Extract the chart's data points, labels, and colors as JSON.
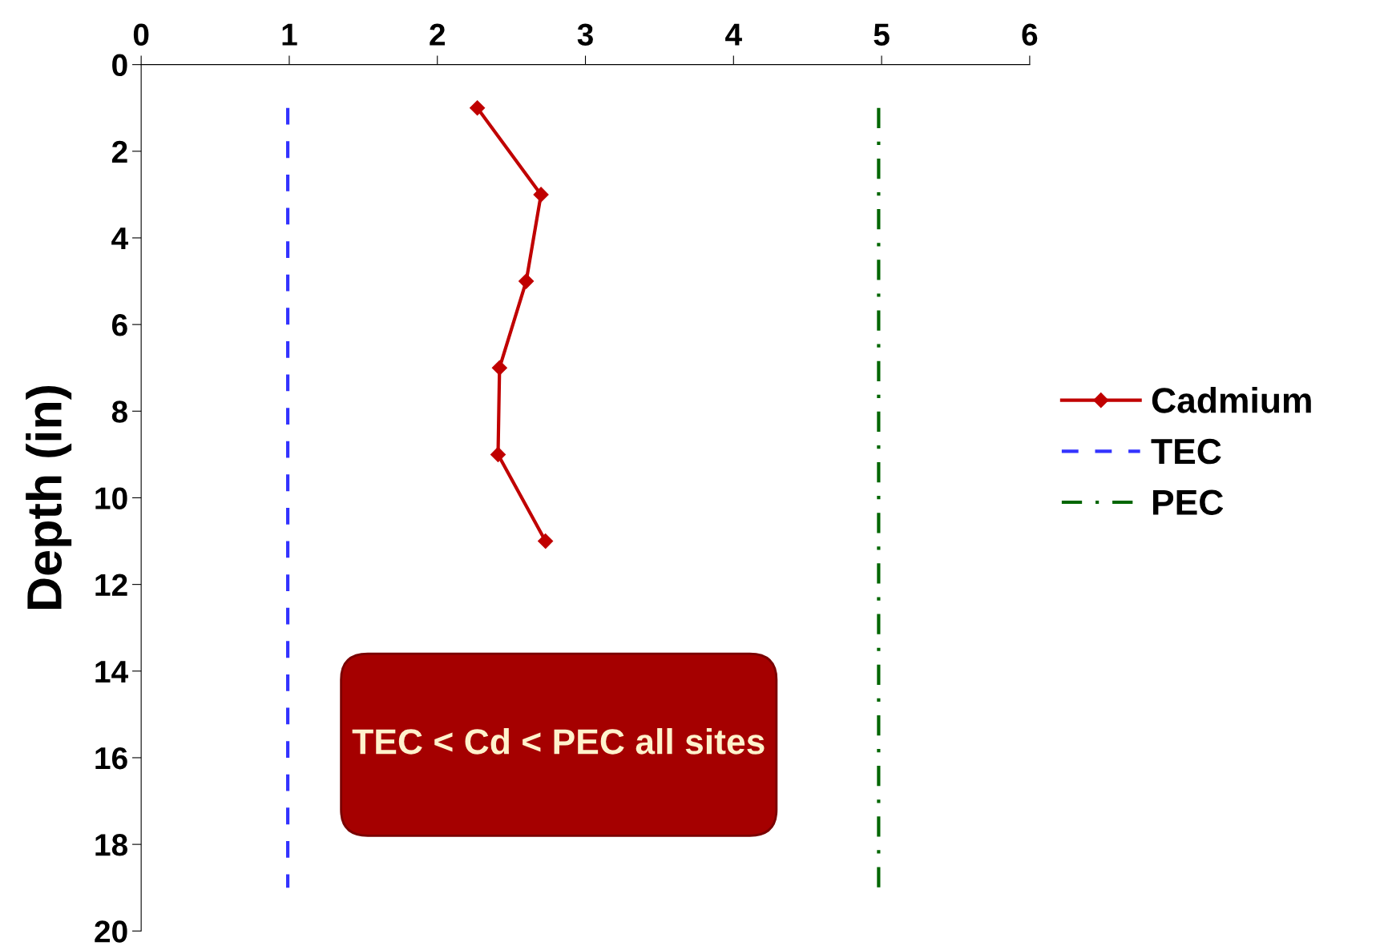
{
  "chart_data": {
    "type": "line",
    "ylabel": "Depth (in)",
    "xlim": [
      0,
      6
    ],
    "xticks": [
      0,
      1,
      2,
      3,
      4,
      5,
      6
    ],
    "ylim": [
      20,
      0
    ],
    "yticks": [
      0,
      2,
      4,
      6,
      8,
      10,
      12,
      14,
      16,
      18,
      20
    ],
    "series": [
      {
        "name": "Cadmium",
        "color": "#c00000",
        "x": [
          2.27,
          2.7,
          2.6,
          2.42,
          2.41,
          2.73
        ],
        "values": [
          1,
          3,
          5,
          7,
          9,
          11
        ],
        "marker": "diamond",
        "line_style": "solid"
      },
      {
        "name": "TEC",
        "color": "#3333ff",
        "x": [
          0.99,
          0.99
        ],
        "values": [
          1,
          19
        ],
        "marker": "none",
        "line_style": "dashed"
      },
      {
        "name": "PEC",
        "color": "#006600",
        "x": [
          4.98,
          4.98
        ],
        "values": [
          1,
          19
        ],
        "marker": "none",
        "line_style": "dashdot"
      }
    ],
    "annotations": [
      "TEC < Cd < PEC all sites"
    ],
    "grid": false,
    "legend": "right"
  }
}
